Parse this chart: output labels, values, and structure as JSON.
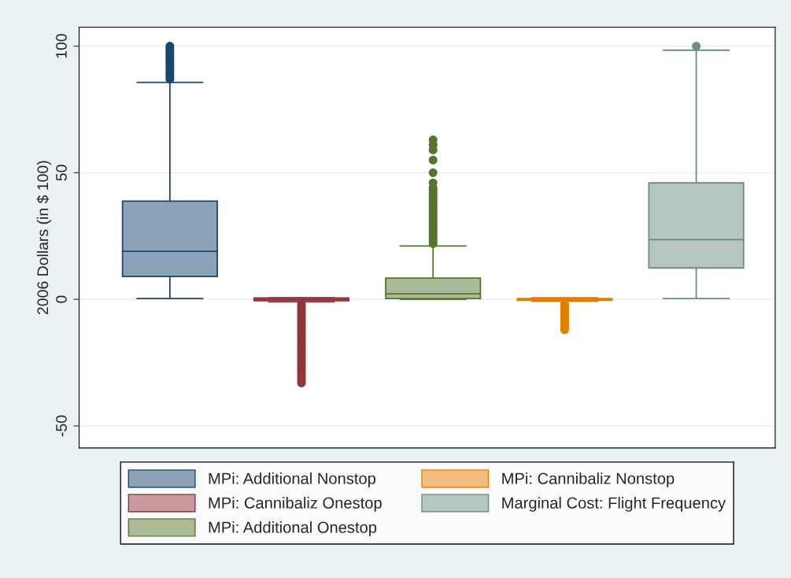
{
  "chart_data": {
    "type": "box",
    "ylabel": "2006 Dollars (in $ 100)",
    "categories": [
      null,
      null,
      null,
      null,
      null
    ],
    "ylim": [
      -58.7,
      107.5
    ],
    "yticks": [
      -50,
      0,
      50,
      100
    ],
    "grid": "y",
    "legend": "bottom",
    "series": [
      {
        "name": "MPi: Additional Nonstop",
        "color": "#1a476f",
        "boxes": [
          {
            "low": 0.3,
            "q1": 9,
            "median": 19,
            "q3": 38.8,
            "high": 85.7,
            "outliers": [
              87,
              88,
              89,
              90,
              91,
              92,
              93,
              94,
              95,
              96,
              97,
              98,
              99,
              100
            ]
          },
          null,
          null,
          null,
          null
        ]
      },
      {
        "name": "MPi: Cannibaliz Onestop",
        "color": "#90353b",
        "boxes": [
          null,
          {
            "low": -1,
            "q1": -0.5,
            "median": 0,
            "q3": 0.5,
            "high": 0.6,
            "outliers": [
              -2,
              -3,
              -4,
              -5,
              -6,
              -7,
              -8,
              -9,
              -10,
              -11,
              -12,
              -13,
              -14,
              -15,
              -16,
              -17,
              -18,
              -19,
              -20,
              -21,
              -22,
              -23,
              -24,
              -25,
              -26,
              -27,
              -28,
              -29,
              -30,
              -31,
              -32,
              -33
            ]
          },
          null,
          null,
          null
        ]
      },
      {
        "name": "MPi: Additional Onestop",
        "color": "#55752f",
        "boxes": [
          null,
          null,
          {
            "low": 0,
            "q1": 0.3,
            "median": 2.2,
            "q3": 8.4,
            "high": 21.1,
            "outliers": [
              22,
              23,
              24,
              25,
              26,
              27,
              28,
              29,
              30,
              31,
              32,
              33,
              34,
              35,
              36,
              37,
              38,
              39,
              40,
              41,
              42,
              43,
              44,
              46,
              50,
              55,
              59,
              61,
              63
            ]
          },
          null,
          null
        ]
      },
      {
        "name": "MPi: Cannibaliz Nonstop",
        "color": "#e37e00",
        "boxes": [
          null,
          null,
          null,
          {
            "low": -0.8,
            "q1": -0.4,
            "median": 0,
            "q3": 0.3,
            "high": 0.6,
            "outliers": [
              -2,
              -3,
              -4,
              -5,
              -6,
              -7,
              -8,
              -9,
              -10,
              -11,
              -12
            ]
          },
          null
        ]
      },
      {
        "name": "Marginal Cost: Flight Frequency",
        "color": "#6e8e84",
        "boxes": [
          null,
          null,
          null,
          null,
          {
            "low": 0.3,
            "q1": 12.4,
            "median": 23.6,
            "q3": 46,
            "high": 98.4,
            "outliers": [
              100
            ]
          }
        ]
      }
    ]
  }
}
